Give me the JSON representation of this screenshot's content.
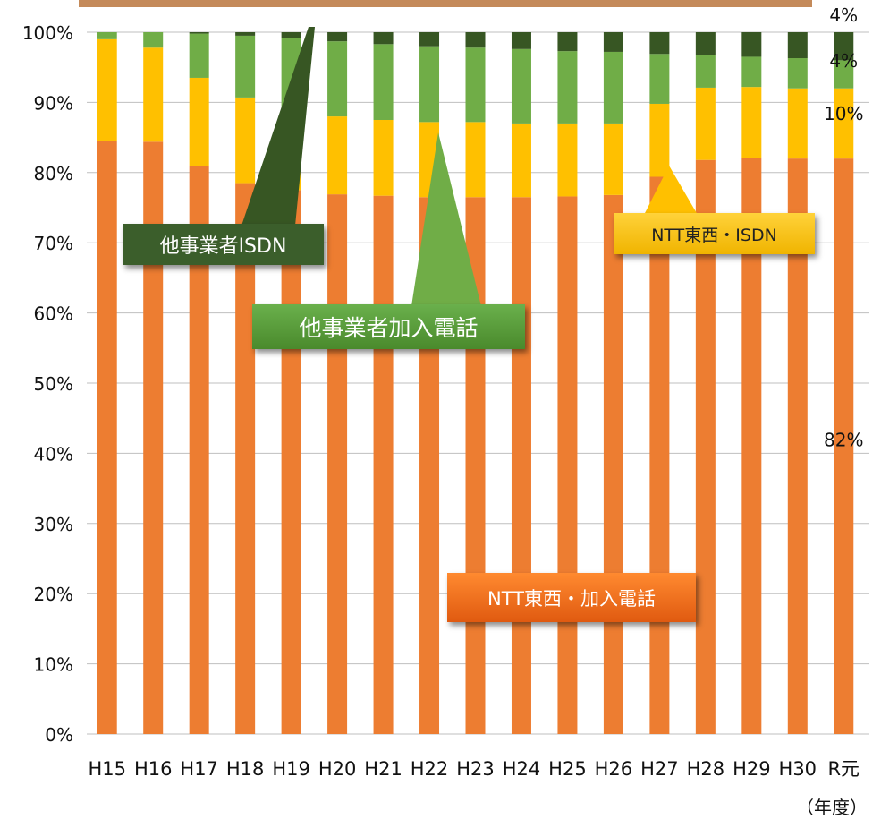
{
  "chart_data": {
    "type": "bar",
    "stacked": true,
    "categories": [
      "H15",
      "H16",
      "H17",
      "H18",
      "H19",
      "H20",
      "H21",
      "H22",
      "H23",
      "H24",
      "H25",
      "H26",
      "H27",
      "H28",
      "H29",
      "H30",
      "R元"
    ],
    "y_ticks": [
      "0%",
      "10%",
      "20%",
      "30%",
      "40%",
      "50%",
      "60%",
      "70%",
      "80%",
      "90%",
      "100%"
    ],
    "ylim": [
      0,
      100
    ],
    "grid": true,
    "series": [
      {
        "name": "NTT東西・加入電話",
        "color": "#ed7d31",
        "values": [
          84.5,
          84.4,
          80.9,
          78.5,
          77.5,
          76.9,
          76.7,
          76.5,
          76.5,
          76.5,
          76.6,
          76.8,
          79.4,
          81.8,
          82.1,
          82.0,
          82.0
        ]
      },
      {
        "name": "NTT東西・ISDN",
        "color": "#ffc000",
        "values": [
          14.5,
          13.4,
          12.6,
          12.2,
          11.3,
          11.1,
          10.8,
          10.7,
          10.7,
          10.5,
          10.4,
          10.2,
          10.4,
          10.3,
          10.1,
          10.0,
          10.0
        ]
      },
      {
        "name": "他事業者加入電話",
        "color": "#70ad47",
        "values": [
          1.0,
          2.2,
          6.3,
          8.8,
          10.4,
          10.7,
          10.8,
          10.8,
          10.6,
          10.6,
          10.3,
          10.2,
          7.1,
          4.6,
          4.3,
          4.3,
          4.0
        ]
      },
      {
        "name": "他事業者ISDN",
        "color": "#375623",
        "values": [
          0.0,
          0.0,
          0.2,
          0.5,
          0.8,
          1.3,
          1.7,
          2.0,
          2.2,
          2.4,
          2.7,
          2.8,
          3.1,
          3.3,
          3.5,
          3.7,
          4.0
        ]
      }
    ],
    "data_labels": [
      "82%",
      "10%",
      "4%",
      "4%"
    ],
    "unit_label": "（年度）"
  }
}
